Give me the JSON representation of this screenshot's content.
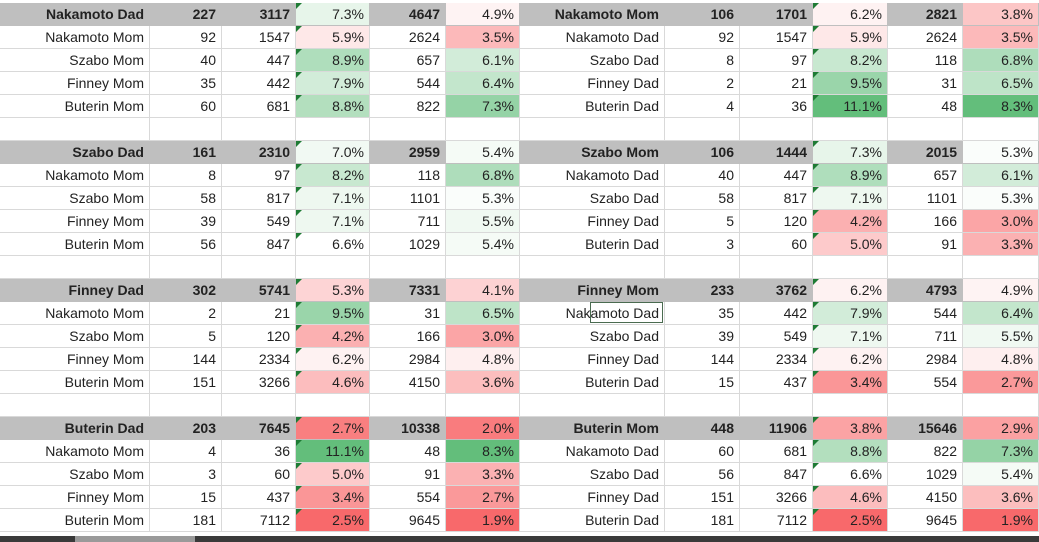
{
  "colors": {
    "header_bg": "#bfbfbf",
    "scale_low": "#f8696b",
    "scale_mid": "#ffffff",
    "scale_high": "#63be7b"
  },
  "left": [
    {
      "header": [
        "Nakamoto Dad",
        "227",
        "3117",
        "7.3%",
        "4647",
        "4.9%"
      ],
      "rows": [
        [
          "Nakamoto Mom",
          "92",
          "1547",
          "5.9%",
          "2624",
          "3.5%"
        ],
        [
          "Szabo Mom",
          "40",
          "447",
          "8.9%",
          "657",
          "6.1%"
        ],
        [
          "Finney Mom",
          "35",
          "442",
          "7.9%",
          "544",
          "6.4%"
        ],
        [
          "Buterin Mom",
          "60",
          "681",
          "8.8%",
          "822",
          "7.3%"
        ]
      ]
    },
    {
      "header": [
        "Szabo Dad",
        "161",
        "2310",
        "7.0%",
        "2959",
        "5.4%"
      ],
      "rows": [
        [
          "Nakamoto Mom",
          "8",
          "97",
          "8.2%",
          "118",
          "6.8%"
        ],
        [
          "Szabo Mom",
          "58",
          "817",
          "7.1%",
          "1101",
          "5.3%"
        ],
        [
          "Finney Mom",
          "39",
          "549",
          "7.1%",
          "711",
          "5.5%"
        ],
        [
          "Buterin Mom",
          "56",
          "847",
          "6.6%",
          "1029",
          "5.4%"
        ]
      ]
    },
    {
      "header": [
        "Finney Dad",
        "302",
        "5741",
        "5.3%",
        "7331",
        "4.1%"
      ],
      "rows": [
        [
          "Nakamoto Mom",
          "2",
          "21",
          "9.5%",
          "31",
          "6.5%"
        ],
        [
          "Szabo Mom",
          "5",
          "120",
          "4.2%",
          "166",
          "3.0%"
        ],
        [
          "Finney Mom",
          "144",
          "2334",
          "6.2%",
          "2984",
          "4.8%"
        ],
        [
          "Buterin Mom",
          "151",
          "3266",
          "4.6%",
          "4150",
          "3.6%"
        ]
      ]
    },
    {
      "header": [
        "Buterin Dad",
        "203",
        "7645",
        "2.7%",
        "10338",
        "2.0%"
      ],
      "rows": [
        [
          "Nakamoto Mom",
          "4",
          "36",
          "11.1%",
          "48",
          "8.3%"
        ],
        [
          "Szabo Mom",
          "3",
          "60",
          "5.0%",
          "91",
          "3.3%"
        ],
        [
          "Finney Mom",
          "15",
          "437",
          "3.4%",
          "554",
          "2.7%"
        ],
        [
          "Buterin Mom",
          "181",
          "7112",
          "2.5%",
          "9645",
          "1.9%"
        ]
      ]
    }
  ],
  "right": [
    {
      "header": [
        "Nakamoto Mom",
        "106",
        "1701",
        "6.2%",
        "2821",
        "3.8%"
      ],
      "rows": [
        [
          "Nakamoto Dad",
          "92",
          "1547",
          "5.9%",
          "2624",
          "3.5%"
        ],
        [
          "Szabo Dad",
          "8",
          "97",
          "8.2%",
          "118",
          "6.8%"
        ],
        [
          "Finney Dad",
          "2",
          "21",
          "9.5%",
          "31",
          "6.5%"
        ],
        [
          "Buterin Dad",
          "4",
          "36",
          "11.1%",
          "48",
          "8.3%"
        ]
      ]
    },
    {
      "header": [
        "Szabo Mom",
        "106",
        "1444",
        "7.3%",
        "2015",
        "5.3%"
      ],
      "rows": [
        [
          "Nakamoto Dad",
          "40",
          "447",
          "8.9%",
          "657",
          "6.1%"
        ],
        [
          "Szabo Dad",
          "58",
          "817",
          "7.1%",
          "1101",
          "5.3%"
        ],
        [
          "Finney Dad",
          "5",
          "120",
          "4.2%",
          "166",
          "3.0%"
        ],
        [
          "Buterin Dad",
          "3",
          "60",
          "5.0%",
          "91",
          "3.3%"
        ]
      ]
    },
    {
      "header": [
        "Finney Mom",
        "233",
        "3762",
        "6.2%",
        "4793",
        "4.9%"
      ],
      "rows": [
        [
          "Nakamoto Dad",
          "35",
          "442",
          "7.9%",
          "544",
          "6.4%"
        ],
        [
          "Szabo Dad",
          "39",
          "549",
          "7.1%",
          "711",
          "5.5%"
        ],
        [
          "Finney Dad",
          "144",
          "2334",
          "6.2%",
          "2984",
          "4.8%"
        ],
        [
          "Buterin Dad",
          "15",
          "437",
          "3.4%",
          "554",
          "2.7%"
        ]
      ]
    },
    {
      "header": [
        "Buterin Mom",
        "448",
        "11906",
        "3.8%",
        "15646",
        "2.9%"
      ],
      "rows": [
        [
          "Nakamoto Dad",
          "60",
          "681",
          "8.8%",
          "822",
          "7.3%"
        ],
        [
          "Szabo Dad",
          "56",
          "847",
          "6.6%",
          "1029",
          "5.4%"
        ],
        [
          "Finney Dad",
          "151",
          "3266",
          "4.6%",
          "4150",
          "3.6%"
        ],
        [
          "Buterin Dad",
          "181",
          "7112",
          "2.5%",
          "9645",
          "1.9%"
        ]
      ]
    }
  ]
}
